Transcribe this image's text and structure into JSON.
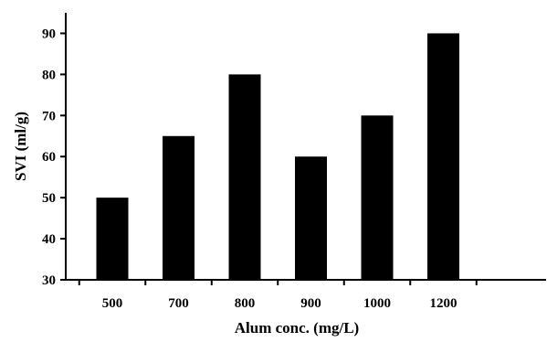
{
  "chart_data": {
    "type": "bar",
    "categories": [
      "500",
      "700",
      "800",
      "900",
      "1000",
      "1200"
    ],
    "values": [
      50,
      65,
      80,
      60,
      70,
      90
    ],
    "xlabel": "Alum conc. (mg/L)",
    "ylabel": "SVI (ml/g)",
    "ylim": [
      30,
      95
    ],
    "yticks": [
      30,
      40,
      50,
      60,
      70,
      80,
      90
    ],
    "grid": false,
    "legend": "none",
    "bar_color": "#000000",
    "axis_color": "#000000"
  }
}
